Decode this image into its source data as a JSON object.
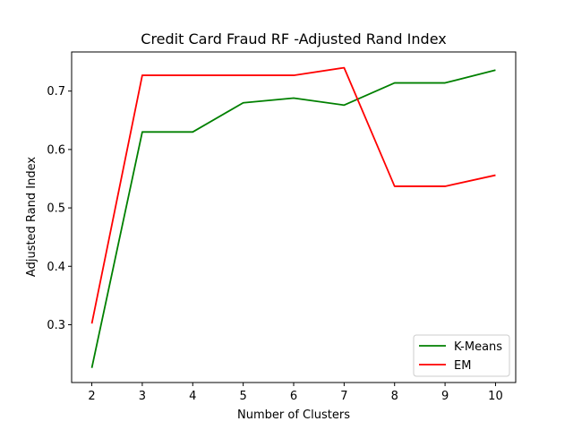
{
  "chart_data": {
    "type": "line",
    "title": "Credit Card Fraud RF -Adjusted Rand Index",
    "xlabel": "Number of Clusters",
    "ylabel": "Adjusted Rand Index",
    "x": [
      2,
      3,
      4,
      5,
      6,
      7,
      8,
      9,
      10
    ],
    "xlim": [
      1.6,
      10.4
    ],
    "ylim": [
      0.201,
      0.767
    ],
    "xticks": [
      "2",
      "3",
      "4",
      "5",
      "6",
      "7",
      "8",
      "9",
      "10"
    ],
    "yticks": [
      0.3,
      0.4,
      0.5,
      0.6,
      0.7
    ],
    "ytick_labels": [
      "0.3",
      "0.4",
      "0.5",
      "0.6",
      "0.7"
    ],
    "grid": false,
    "legend_position": "lower-right",
    "series": [
      {
        "name": "K-Means",
        "color": "#008000",
        "values": [
          0.226,
          0.63,
          0.63,
          0.68,
          0.688,
          0.676,
          0.714,
          0.714,
          0.736
        ]
      },
      {
        "name": "EM",
        "color": "#ff0000",
        "values": [
          0.302,
          0.727,
          0.727,
          0.727,
          0.727,
          0.74,
          0.537,
          0.537,
          0.556
        ]
      }
    ]
  }
}
